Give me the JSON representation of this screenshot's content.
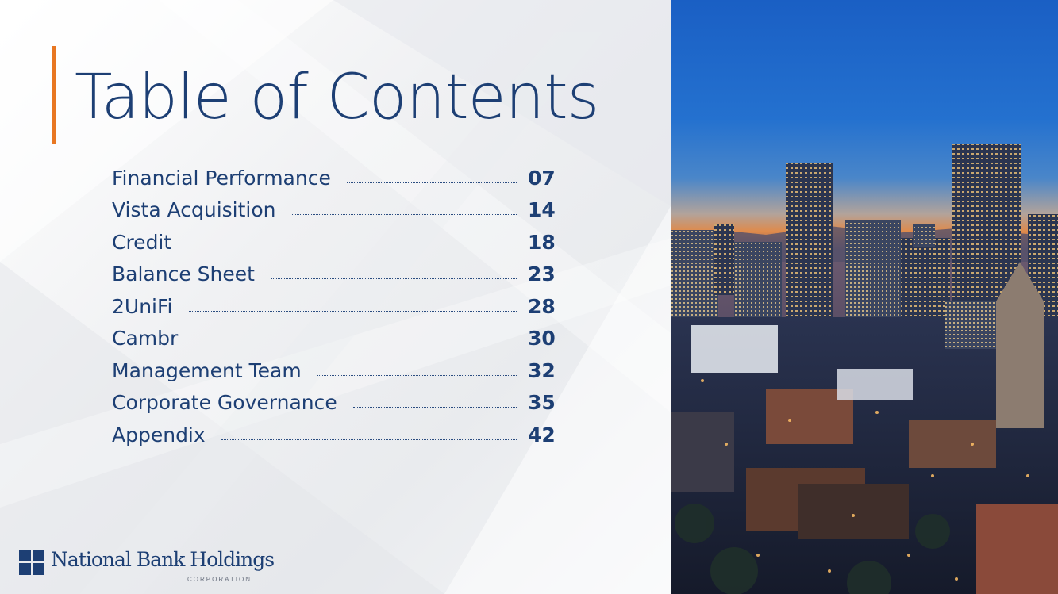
{
  "page": {
    "title": "Table of Contents"
  },
  "toc": [
    {
      "label": "Financial Performance",
      "page": "07"
    },
    {
      "label": "Vista Acquisition",
      "page": "14"
    },
    {
      "label": "Credit",
      "page": "18"
    },
    {
      "label": "Balance Sheet",
      "page": "23"
    },
    {
      "label": "2UniFi",
      "page": "28"
    },
    {
      "label": "Cambr",
      "page": "30"
    },
    {
      "label": "Management Team",
      "page": "32"
    },
    {
      "label": "Corporate Governance",
      "page": "35"
    },
    {
      "label": "Appendix",
      "page": "42"
    }
  ],
  "logo": {
    "name": "National Bank Holdings",
    "subtitle": "CORPORATION"
  },
  "colors": {
    "brand_navy": "#1d3f74",
    "accent_orange": "#e87722"
  },
  "icons": {
    "logo_mark": "four-squares-icon",
    "photo": "city-skyline-photo"
  }
}
